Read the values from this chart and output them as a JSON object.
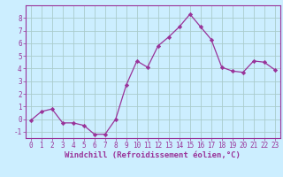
{
  "x": [
    0,
    1,
    2,
    3,
    4,
    5,
    6,
    7,
    8,
    9,
    10,
    11,
    12,
    13,
    14,
    15,
    16,
    17,
    18,
    19,
    20,
    21,
    22,
    23
  ],
  "y": [
    -0.1,
    0.6,
    0.8,
    -0.3,
    -0.3,
    -0.5,
    -1.2,
    -1.2,
    0.0,
    2.7,
    4.6,
    4.1,
    5.8,
    6.5,
    7.3,
    8.3,
    7.3,
    6.3,
    4.1,
    3.8,
    3.7,
    4.6,
    4.5,
    3.9
  ],
  "line_color": "#993399",
  "marker": "D",
  "marker_size": 2.2,
  "bg_color": "#cceeff",
  "grid_color": "#aacccc",
  "xlabel": "Windchill (Refroidissement éolien,°C)",
  "xlim": [
    -0.5,
    23.5
  ],
  "ylim": [
    -1.5,
    9.0
  ],
  "yticks": [
    -1,
    0,
    1,
    2,
    3,
    4,
    5,
    6,
    7,
    8
  ],
  "xticks": [
    0,
    1,
    2,
    3,
    4,
    5,
    6,
    7,
    8,
    9,
    10,
    11,
    12,
    13,
    14,
    15,
    16,
    17,
    18,
    19,
    20,
    21,
    22,
    23
  ],
  "tick_color": "#993399",
  "label_color": "#993399",
  "tick_fontsize": 5.5,
  "xlabel_fontsize": 6.5
}
